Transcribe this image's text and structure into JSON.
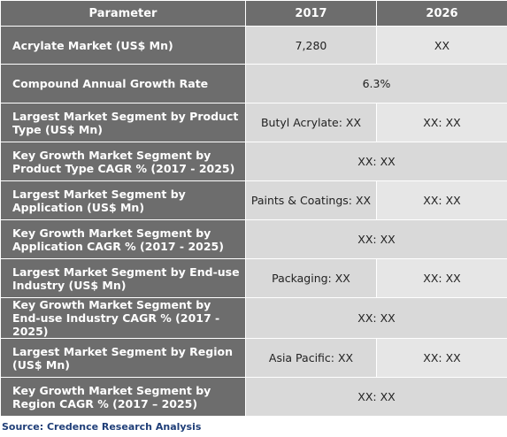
{
  "table": {
    "headers": [
      "Parameter",
      "2017",
      "2026"
    ],
    "rows": [
      {
        "param": "Acrylate Market (US$ Mn)",
        "v2017": "7,280",
        "v2026": "XX"
      },
      {
        "param": "Compound Annual Growth Rate",
        "span": "6.3%"
      },
      {
        "param": "Largest Market Segment by Product Type (US$ Mn)",
        "v2017": "Butyl Acrylate: XX",
        "v2026": "XX: XX"
      },
      {
        "param": "Key Growth Market Segment by Product Type CAGR % (2017 - 2025)",
        "span": "XX: XX"
      },
      {
        "param": "Largest Market Segment by Application (US$ Mn)",
        "v2017": "Paints & Coatings: XX",
        "v2026": "XX: XX"
      },
      {
        "param": "Key Growth Market Segment by Application CAGR % (2017 - 2025)",
        "span": "XX: XX"
      },
      {
        "param": "Largest Market Segment by End-use Industry (US$ Mn)",
        "v2017": "Packaging: XX",
        "v2026": "XX: XX"
      },
      {
        "param": "Key Growth Market Segment by End-use Industry CAGR % (2017 - 2025)",
        "span": "XX: XX"
      },
      {
        "param": "Largest Market Segment by Region (US$ Mn)",
        "v2017": "Asia Pacific: XX",
        "v2026": "XX: XX"
      },
      {
        "param": "Key Growth Market Segment by Region CAGR % (2017 – 2025)",
        "span": "XX: XX"
      }
    ]
  },
  "source": "Source: Credence Research Analysis"
}
